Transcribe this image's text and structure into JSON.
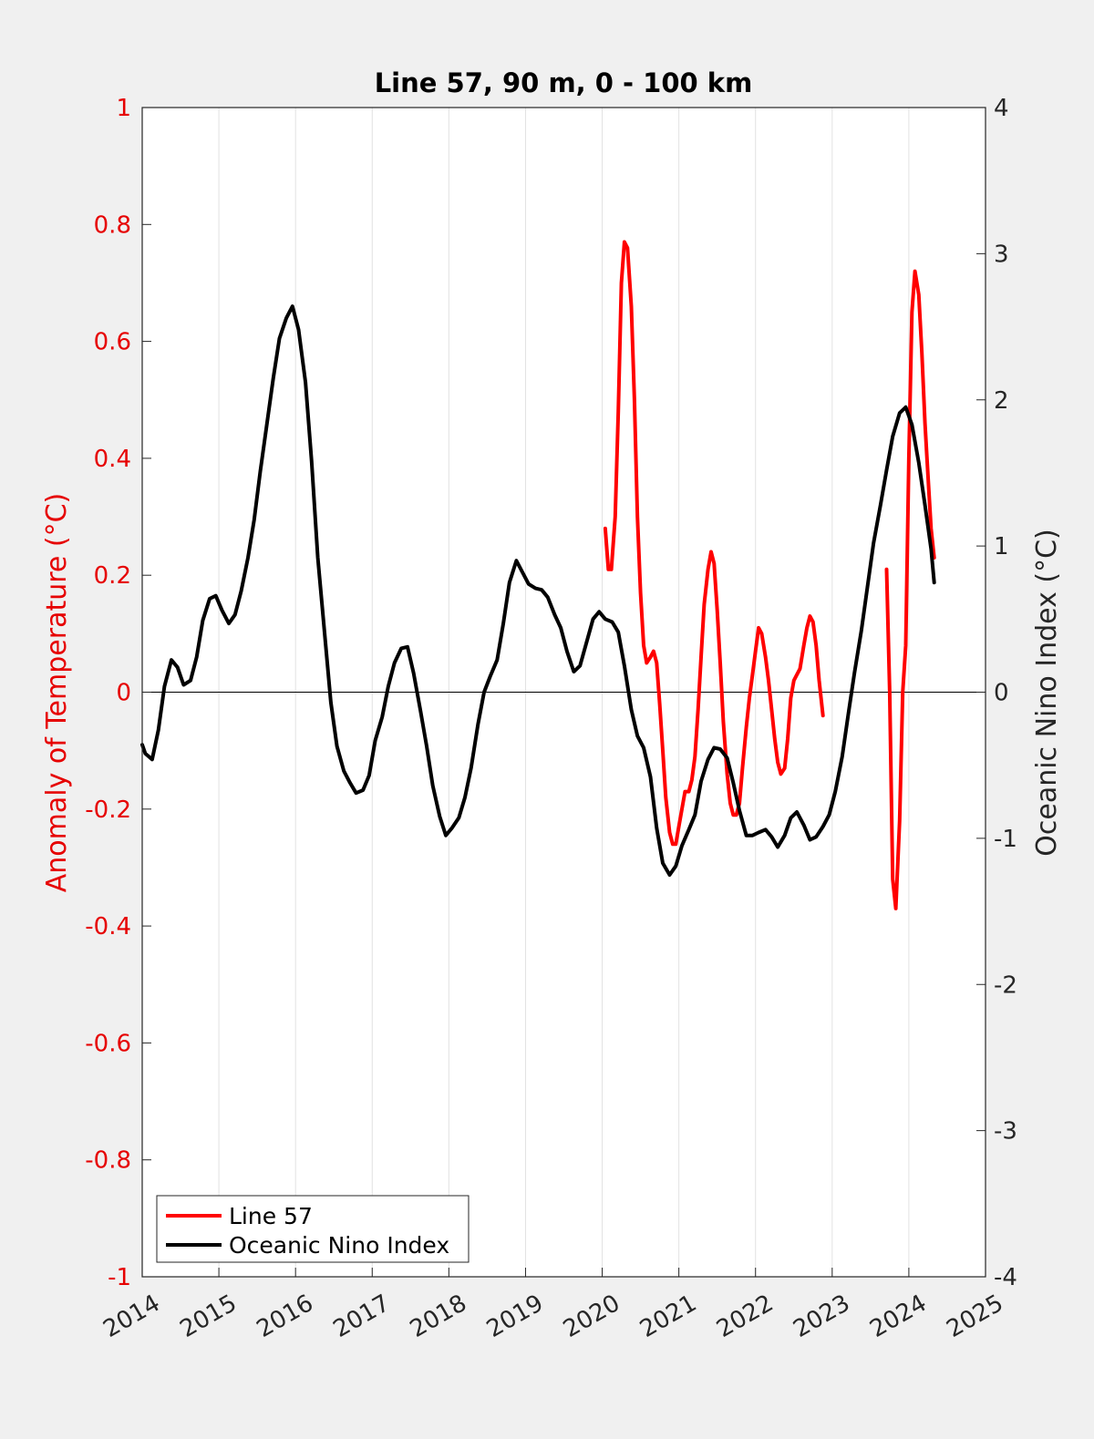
{
  "chart_data": {
    "type": "line",
    "title": "Line 57, 90 m, 0 - 100 km",
    "xlabel": "",
    "ylabel_left": "Anomaly of Temperature (°C)",
    "ylabel_right": "Oceanic Nino Index (°C)",
    "xlim": [
      2014,
      2025
    ],
    "ylim_left": [
      -1,
      1
    ],
    "ylim_right": [
      -4,
      4
    ],
    "x_ticks": [
      "2014",
      "2015",
      "2016",
      "2017",
      "2018",
      "2019",
      "2020",
      "2021",
      "2022",
      "2023",
      "2024",
      "2025"
    ],
    "y_ticks_left": [
      "-1",
      "-0.8",
      "-0.6",
      "-0.4",
      "-0.2",
      "0",
      "0.2",
      "0.4",
      "0.6",
      "0.8",
      "1"
    ],
    "y_ticks_right": [
      "-4",
      "-3",
      "-2",
      "-1",
      "0",
      "1",
      "2",
      "3",
      "4"
    ],
    "grid": "vertical",
    "zero_line": true,
    "legend_position": "bottom-left",
    "colors": {
      "line57": "#ff0000",
      "oni": "#000000",
      "left_axis": "#e60000",
      "right_axis": "#262626"
    },
    "series": [
      {
        "name": "Line 57",
        "axis": "left",
        "segments": [
          [
            [
              2020.04,
              0.28
            ],
            [
              2020.08,
              0.21
            ],
            [
              2020.12,
              0.21
            ],
            [
              2020.17,
              0.3
            ],
            [
              2020.21,
              0.48
            ],
            [
              2020.25,
              0.7
            ],
            [
              2020.29,
              0.77
            ],
            [
              2020.33,
              0.76
            ],
            [
              2020.38,
              0.66
            ],
            [
              2020.42,
              0.5
            ],
            [
              2020.46,
              0.3
            ],
            [
              2020.5,
              0.17
            ],
            [
              2020.54,
              0.08
            ],
            [
              2020.58,
              0.05
            ],
            [
              2020.63,
              0.06
            ],
            [
              2020.67,
              0.07
            ],
            [
              2020.71,
              0.05
            ],
            [
              2020.75,
              -0.02
            ],
            [
              2020.79,
              -0.1
            ],
            [
              2020.83,
              -0.18
            ],
            [
              2020.88,
              -0.24
            ],
            [
              2020.92,
              -0.26
            ],
            [
              2020.96,
              -0.26
            ],
            [
              2021.0,
              -0.23
            ],
            [
              2021.04,
              -0.2
            ],
            [
              2021.08,
              -0.17
            ],
            [
              2021.13,
              -0.17
            ],
            [
              2021.17,
              -0.15
            ],
            [
              2021.21,
              -0.11
            ],
            [
              2021.25,
              -0.03
            ],
            [
              2021.29,
              0.06
            ],
            [
              2021.33,
              0.15
            ],
            [
              2021.38,
              0.21
            ],
            [
              2021.42,
              0.24
            ],
            [
              2021.46,
              0.22
            ],
            [
              2021.5,
              0.14
            ],
            [
              2021.54,
              0.05
            ],
            [
              2021.58,
              -0.05
            ],
            [
              2021.63,
              -0.14
            ],
            [
              2021.67,
              -0.19
            ],
            [
              2021.71,
              -0.21
            ],
            [
              2021.75,
              -0.21
            ],
            [
              2021.79,
              -0.19
            ],
            [
              2021.83,
              -0.13
            ],
            [
              2021.88,
              -0.06
            ],
            [
              2021.92,
              -0.01
            ],
            [
              2021.96,
              0.03
            ],
            [
              2022.0,
              0.07
            ],
            [
              2022.04,
              0.11
            ],
            [
              2022.08,
              0.1
            ],
            [
              2022.13,
              0.06
            ],
            [
              2022.17,
              0.02
            ],
            [
              2022.21,
              -0.03
            ],
            [
              2022.25,
              -0.08
            ],
            [
              2022.29,
              -0.12
            ],
            [
              2022.33,
              -0.14
            ],
            [
              2022.38,
              -0.13
            ],
            [
              2022.42,
              -0.08
            ],
            [
              2022.46,
              -0.01
            ],
            [
              2022.5,
              0.02
            ],
            [
              2022.54,
              0.03
            ],
            [
              2022.58,
              0.04
            ],
            [
              2022.63,
              0.08
            ],
            [
              2022.67,
              0.11
            ],
            [
              2022.71,
              0.13
            ],
            [
              2022.75,
              0.12
            ],
            [
              2022.79,
              0.08
            ],
            [
              2022.83,
              0.02
            ],
            [
              2022.88,
              -0.04
            ]
          ],
          [
            [
              2023.71,
              0.21
            ],
            [
              2023.75,
              0.0
            ],
            [
              2023.79,
              -0.32
            ],
            [
              2023.83,
              -0.37
            ],
            [
              2023.88,
              -0.22
            ],
            [
              2023.92,
              0.0
            ],
            [
              2023.96,
              0.08
            ],
            [
              2024.0,
              0.4
            ],
            [
              2024.04,
              0.65
            ],
            [
              2024.08,
              0.72
            ],
            [
              2024.13,
              0.68
            ],
            [
              2024.17,
              0.58
            ],
            [
              2024.21,
              0.46
            ],
            [
              2024.25,
              0.37
            ],
            [
              2024.29,
              0.28
            ],
            [
              2024.33,
              0.23
            ]
          ]
        ]
      },
      {
        "name": "Oceanic Nino Index",
        "axis": "right",
        "points": [
          [
            2014.0,
            -0.36
          ],
          [
            2014.04,
            -0.42
          ],
          [
            2014.13,
            -0.46
          ],
          [
            2014.21,
            -0.26
          ],
          [
            2014.29,
            0.04
          ],
          [
            2014.38,
            0.22
          ],
          [
            2014.46,
            0.17
          ],
          [
            2014.54,
            0.05
          ],
          [
            2014.63,
            0.08
          ],
          [
            2014.71,
            0.24
          ],
          [
            2014.79,
            0.49
          ],
          [
            2014.88,
            0.64
          ],
          [
            2014.96,
            0.66
          ],
          [
            2015.04,
            0.56
          ],
          [
            2015.13,
            0.47
          ],
          [
            2015.21,
            0.53
          ],
          [
            2015.29,
            0.69
          ],
          [
            2015.38,
            0.92
          ],
          [
            2015.46,
            1.18
          ],
          [
            2015.54,
            1.51
          ],
          [
            2015.63,
            1.85
          ],
          [
            2015.71,
            2.15
          ],
          [
            2015.79,
            2.42
          ],
          [
            2015.88,
            2.56
          ],
          [
            2015.96,
            2.64
          ],
          [
            2016.04,
            2.48
          ],
          [
            2016.13,
            2.12
          ],
          [
            2016.21,
            1.58
          ],
          [
            2016.29,
            0.92
          ],
          [
            2016.38,
            0.4
          ],
          [
            2016.46,
            -0.07
          ],
          [
            2016.54,
            -0.37
          ],
          [
            2016.63,
            -0.54
          ],
          [
            2016.71,
            -0.62
          ],
          [
            2016.79,
            -0.69
          ],
          [
            2016.88,
            -0.67
          ],
          [
            2016.96,
            -0.57
          ],
          [
            2017.04,
            -0.33
          ],
          [
            2017.13,
            -0.17
          ],
          [
            2017.21,
            0.04
          ],
          [
            2017.29,
            0.2
          ],
          [
            2017.38,
            0.3
          ],
          [
            2017.46,
            0.31
          ],
          [
            2017.54,
            0.13
          ],
          [
            2017.63,
            -0.13
          ],
          [
            2017.71,
            -0.37
          ],
          [
            2017.79,
            -0.64
          ],
          [
            2017.88,
            -0.85
          ],
          [
            2017.96,
            -0.98
          ],
          [
            2018.04,
            -0.93
          ],
          [
            2018.13,
            -0.86
          ],
          [
            2018.21,
            -0.72
          ],
          [
            2018.29,
            -0.52
          ],
          [
            2018.38,
            -0.22
          ],
          [
            2018.46,
            0.0
          ],
          [
            2018.54,
            0.11
          ],
          [
            2018.63,
            0.22
          ],
          [
            2018.71,
            0.47
          ],
          [
            2018.79,
            0.75
          ],
          [
            2018.88,
            0.9
          ],
          [
            2018.96,
            0.82
          ],
          [
            2019.04,
            0.74
          ],
          [
            2019.13,
            0.71
          ],
          [
            2019.21,
            0.7
          ],
          [
            2019.29,
            0.65
          ],
          [
            2019.38,
            0.53
          ],
          [
            2019.46,
            0.44
          ],
          [
            2019.54,
            0.28
          ],
          [
            2019.63,
            0.14
          ],
          [
            2019.71,
            0.18
          ],
          [
            2019.79,
            0.33
          ],
          [
            2019.88,
            0.5
          ],
          [
            2019.96,
            0.55
          ],
          [
            2020.04,
            0.5
          ],
          [
            2020.13,
            0.48
          ],
          [
            2020.21,
            0.41
          ],
          [
            2020.29,
            0.18
          ],
          [
            2020.38,
            -0.12
          ],
          [
            2020.46,
            -0.3
          ],
          [
            2020.54,
            -0.38
          ],
          [
            2020.63,
            -0.58
          ],
          [
            2020.71,
            -0.93
          ],
          [
            2020.79,
            -1.17
          ],
          [
            2020.88,
            -1.25
          ],
          [
            2020.96,
            -1.19
          ],
          [
            2021.04,
            -1.05
          ],
          [
            2021.13,
            -0.94
          ],
          [
            2021.21,
            -0.84
          ],
          [
            2021.29,
            -0.61
          ],
          [
            2021.38,
            -0.46
          ],
          [
            2021.46,
            -0.38
          ],
          [
            2021.54,
            -0.39
          ],
          [
            2021.63,
            -0.45
          ],
          [
            2021.71,
            -0.62
          ],
          [
            2021.79,
            -0.81
          ],
          [
            2021.88,
            -0.98
          ],
          [
            2021.96,
            -0.98
          ],
          [
            2022.04,
            -0.96
          ],
          [
            2022.13,
            -0.94
          ],
          [
            2022.21,
            -0.99
          ],
          [
            2022.29,
            -1.06
          ],
          [
            2022.38,
            -0.98
          ],
          [
            2022.46,
            -0.86
          ],
          [
            2022.54,
            -0.82
          ],
          [
            2022.63,
            -0.91
          ],
          [
            2022.71,
            -1.01
          ],
          [
            2022.79,
            -0.99
          ],
          [
            2022.88,
            -0.92
          ],
          [
            2022.96,
            -0.84
          ],
          [
            2023.04,
            -0.68
          ],
          [
            2023.13,
            -0.44
          ],
          [
            2023.21,
            -0.15
          ],
          [
            2023.29,
            0.13
          ],
          [
            2023.38,
            0.42
          ],
          [
            2023.46,
            0.72
          ],
          [
            2023.54,
            1.02
          ],
          [
            2023.63,
            1.28
          ],
          [
            2023.71,
            1.52
          ],
          [
            2023.79,
            1.75
          ],
          [
            2023.88,
            1.91
          ],
          [
            2023.96,
            1.95
          ],
          [
            2024.04,
            1.83
          ],
          [
            2024.13,
            1.57
          ],
          [
            2024.21,
            1.28
          ],
          [
            2024.29,
            0.98
          ],
          [
            2024.33,
            0.75
          ]
        ]
      }
    ]
  }
}
